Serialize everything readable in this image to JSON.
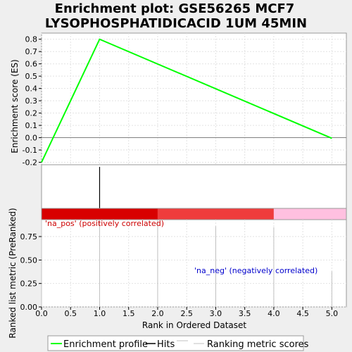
{
  "title_lines": [
    "Enrichment plot: GSE56265 MCF7",
    "LYSOPHOSPHATIDICACID  1UM 45MIN"
  ],
  "chart_data": [
    {
      "type": "line",
      "panel": "enrichment-score",
      "ylabel": "Enrichment score (ES)",
      "ylim": [
        -0.22,
        0.85
      ],
      "xlim": [
        0,
        5.25
      ],
      "yticks": [
        -0.2,
        -0.1,
        0.0,
        0.1,
        0.2,
        0.3,
        0.4,
        0.5,
        0.6,
        0.7,
        0.8
      ],
      "ytick_labels": [
        "-0.2",
        "-0.1",
        "0.0",
        "0.1",
        "0.2",
        "0.3",
        "0.4",
        "0.5",
        "0.6",
        "0.7",
        "0.8"
      ],
      "grid": true,
      "series": [
        {
          "name": "Enrichment profile",
          "color": "#00ff00",
          "x": [
            0,
            1,
            5
          ],
          "y": [
            -0.2,
            0.8,
            -0.005
          ]
        }
      ]
    },
    {
      "type": "bar",
      "panel": "hits",
      "series": [
        {
          "name": "Hits",
          "color": "#000000",
          "x": [
            1
          ]
        }
      ]
    },
    {
      "type": "heatmap",
      "panel": "rank-colorbar",
      "segments": [
        {
          "from": 0,
          "to": 2,
          "color": "#d80000"
        },
        {
          "from": 2,
          "to": 4,
          "color": "#ef3c3c"
        },
        {
          "from": 4,
          "to": 5.25,
          "color": "#ffc0e0"
        }
      ]
    },
    {
      "type": "bar",
      "panel": "ranked-list-metric",
      "ylabel": "Ranked list metric (PreRanked)",
      "xlabel": "Rank in Ordered Dataset",
      "xlim": [
        0,
        5.25
      ],
      "ylim": [
        0,
        0.93
      ],
      "xticks": [
        0,
        0.5,
        1,
        1.5,
        2,
        2.5,
        3,
        3.5,
        4,
        4.5,
        5
      ],
      "xtick_labels": [
        "0.0",
        "0.5",
        "1.0",
        "1.5",
        "2.0",
        "2.5",
        "3.0",
        "3.5",
        "4.0",
        "4.5",
        "5.0"
      ],
      "yticks": [
        0,
        0.25,
        0.5,
        0.75
      ],
      "ytick_labels": [
        "0.00",
        "0.25",
        "0.50",
        "0.75"
      ],
      "grid": true,
      "series": [
        {
          "name": "Ranking metric scores",
          "color": "#c0c0c0",
          "x": [
            0,
            1,
            2,
            3,
            4,
            5
          ],
          "y": [
            0.93,
            0.93,
            0.93,
            0.86,
            0.85,
            0.38
          ]
        }
      ],
      "annotations": [
        {
          "text": "'na_pos' (positively correlated)",
          "color": "#cc0000"
        },
        {
          "text": "'na_neg' (negatively correlated)",
          "color": "#0000cc"
        }
      ]
    }
  ],
  "legend": {
    "placement": "bottom",
    "items": [
      {
        "label": "Enrichment profile",
        "color": "#00ff00"
      },
      {
        "label": "Hits",
        "color": "#000000"
      },
      {
        "label": "Ranking metric scores",
        "color": "#c0c0c0"
      }
    ]
  }
}
